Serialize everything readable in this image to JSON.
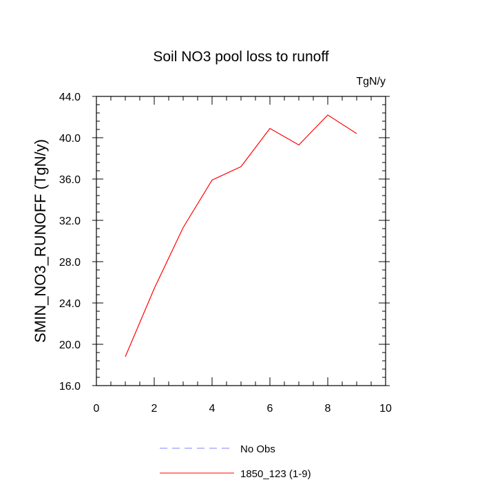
{
  "chart_data": {
    "type": "line",
    "title": "Soil NO3 pool loss to runoff",
    "units_label": "TgN/y",
    "ylabel": "SMIN_NO3_RUNOFF  (TgN/y)",
    "xlabel": "",
    "xlim": [
      0,
      10
    ],
    "ylim": [
      16,
      44
    ],
    "x_ticks": [
      0,
      2,
      4,
      6,
      8,
      10
    ],
    "x_tick_labels": [
      "0",
      "2",
      "4",
      "6",
      "8",
      "10"
    ],
    "y_ticks": [
      16,
      20,
      24,
      28,
      32,
      36,
      40,
      44
    ],
    "y_tick_labels": [
      "16.0",
      "20.0",
      "24.0",
      "28.0",
      "32.0",
      "36.0",
      "40.0",
      "44.0"
    ],
    "grid": false,
    "legend_placement": "bottom",
    "series": [
      {
        "name": "1850_123 (1-9)",
        "color": "#ff0000",
        "style": "solid",
        "x": [
          1,
          2,
          3,
          4,
          5,
          6,
          7,
          8,
          9
        ],
        "y": [
          18.8,
          25.4,
          31.3,
          35.9,
          37.2,
          40.9,
          39.3,
          42.2,
          40.4
        ]
      }
    ],
    "legend": [
      {
        "label": "No Obs",
        "color": "#8080ff",
        "style": "dashed"
      },
      {
        "label": "1850_123 (1-9)",
        "color": "#ff0000",
        "style": "solid"
      }
    ]
  }
}
